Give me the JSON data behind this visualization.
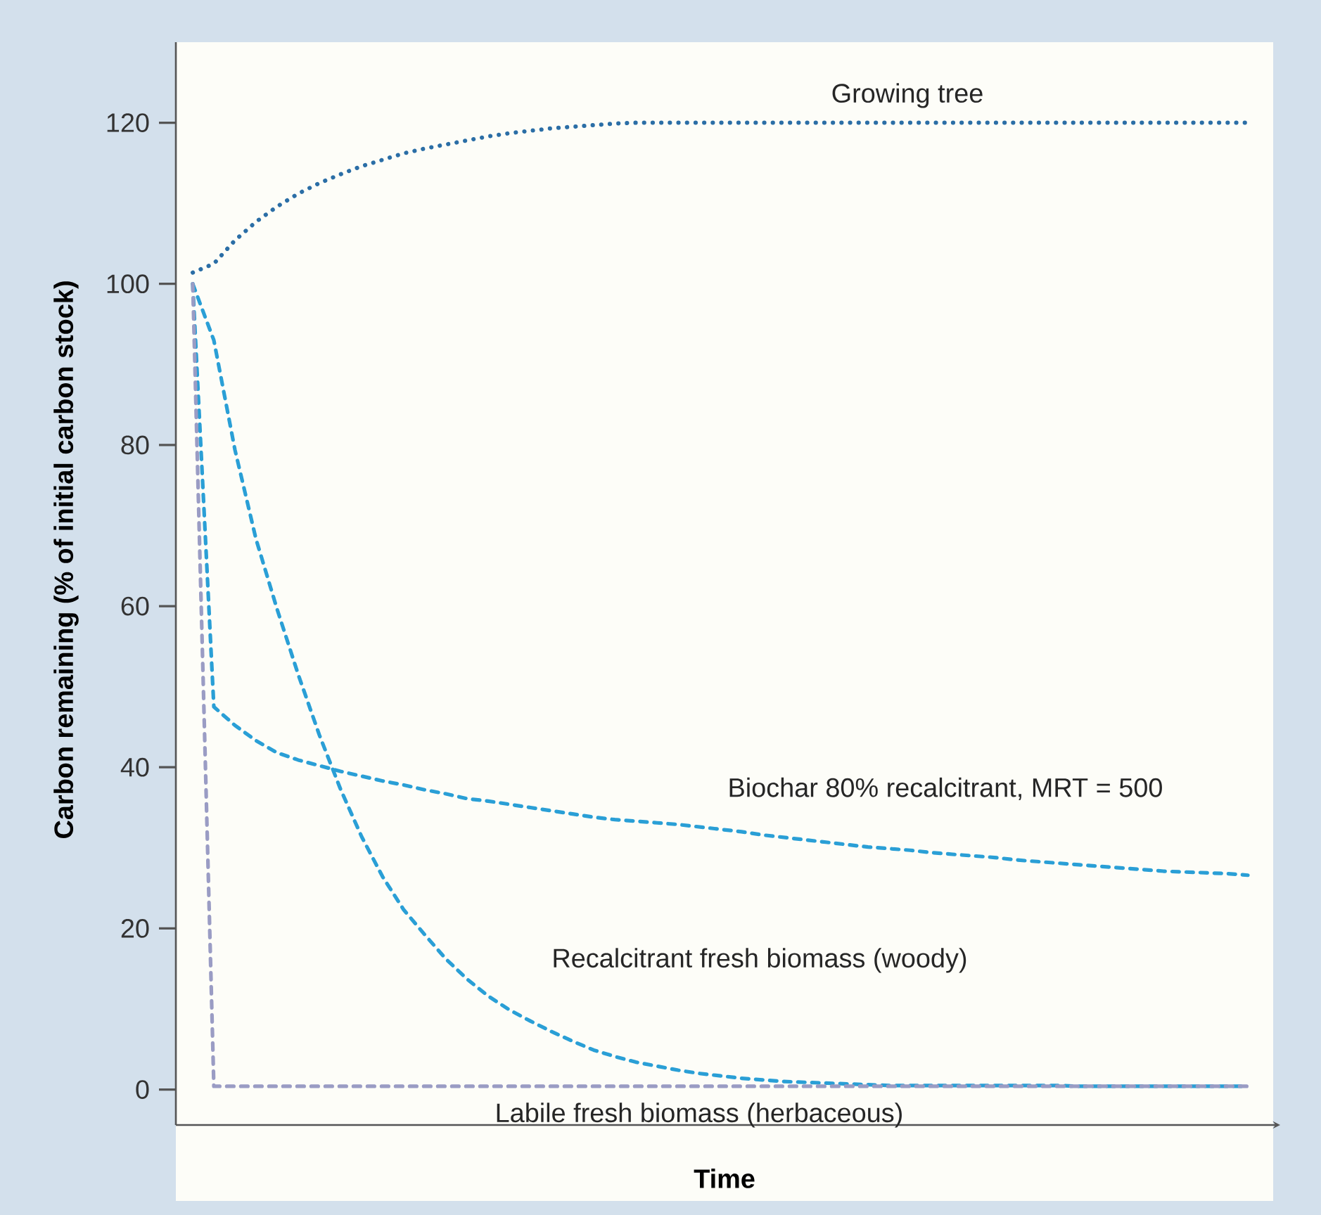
{
  "chart_data": {
    "type": "line",
    "xlabel": "Time",
    "ylabel": "Carbon remaining (% of initial carbon stock)",
    "categories": [
      null,
      null,
      null,
      null,
      null,
      null,
      null,
      null,
      null,
      null,
      null,
      null,
      null,
      null,
      null,
      null,
      null,
      null,
      null,
      null,
      null,
      null,
      null,
      null,
      null,
      null,
      null,
      null,
      null,
      null,
      null,
      null,
      null,
      null,
      null,
      null,
      null,
      null,
      null,
      null,
      null,
      null,
      null,
      null,
      null,
      null,
      null,
      null,
      null,
      null,
      null
    ],
    "ylim": [
      -4.4,
      130
    ],
    "yticks": [
      0,
      20,
      40,
      60,
      80,
      100,
      120
    ],
    "tick_labels": "y",
    "grid": false,
    "legend": false,
    "marker": "none",
    "series": [
      {
        "name": "Growing tree",
        "color": "#2b6ea6",
        "line_style": "dotted",
        "values": [
          101.4,
          102.5,
          105.4,
          107.7,
          109.6,
          111.2,
          112.5,
          113.6,
          114.6,
          115.4,
          116.2,
          116.8,
          117.3,
          117.8,
          118.3,
          118.7,
          119.0,
          119.3,
          119.5,
          119.7,
          119.9,
          120,
          120,
          120,
          120,
          120,
          120,
          120,
          120,
          120,
          120,
          120,
          120,
          120,
          120,
          120,
          120,
          120,
          120,
          120,
          120,
          120,
          120,
          120,
          120,
          120,
          120,
          120,
          120,
          120,
          120
        ]
      },
      {
        "name": "Biochar 80% recalcitrant, MRT = 500",
        "color": "#2a9fd6",
        "line_style": "dashed",
        "values": [
          100,
          47.5,
          45.2,
          43.3,
          41.8,
          40.9,
          40.2,
          39.5,
          38.9,
          38.3,
          37.8,
          37.2,
          36.7,
          36.1,
          35.8,
          35.4,
          35.0,
          34.6,
          34.2,
          33.8,
          33.5,
          33.3,
          33.1,
          32.9,
          32.6,
          32.3,
          32.0,
          31.6,
          31.3,
          31.0,
          30.7,
          30.4,
          30.1,
          29.9,
          29.7,
          29.4,
          29.2,
          29.0,
          28.8,
          28.5,
          28.3,
          28.1,
          27.9,
          27.7,
          27.5,
          27.3,
          27.1,
          27.0,
          26.9,
          26.8,
          26.6
        ]
      },
      {
        "name": "Recalcitrant fresh biomass (woody)",
        "color": "#2a9fd6",
        "line_style": "dashed",
        "values": [
          100,
          93,
          79.4,
          68.3,
          59.6,
          51.5,
          44.0,
          37.3,
          31.4,
          26.4,
          22.3,
          19.2,
          16.2,
          13.7,
          11.6,
          9.9,
          8.5,
          7.2,
          6.0,
          4.9,
          4.1,
          3.4,
          2.9,
          2.4,
          2.0,
          1.7,
          1.4,
          1.2,
          1.0,
          0.9,
          0.8,
          0.7,
          0.6,
          0.5,
          0.5,
          0.5,
          0.5,
          0.5,
          0.5,
          0.5,
          0.5,
          0.5,
          0.4,
          0.4,
          0.4,
          0.4,
          0.4,
          0.4,
          0.4,
          0.4,
          0.4
        ]
      },
      {
        "name": "Labile fresh biomass (herbaceous)",
        "color": "#9a9cc4",
        "line_style": "dashed",
        "values": [
          100,
          0.4,
          0.4,
          0.4,
          0.4,
          0.4,
          0.4,
          0.4,
          0.4,
          0.4,
          0.4,
          0.4,
          0.4,
          0.4,
          0.4,
          0.4,
          0.4,
          0.4,
          0.4,
          0.4,
          0.4,
          0.4,
          0.4,
          0.4,
          0.4,
          0.4,
          0.4,
          0.4,
          0.4,
          0.4,
          0.4,
          0.4,
          0.4,
          0.4,
          0.4,
          0.4,
          0.4,
          0.4,
          0.4,
          0.4,
          0.4,
          0.4,
          0.4,
          0.4,
          0.4,
          0.4,
          0.4,
          0.4,
          0.4,
          0.4,
          0.4
        ]
      }
    ]
  }
}
